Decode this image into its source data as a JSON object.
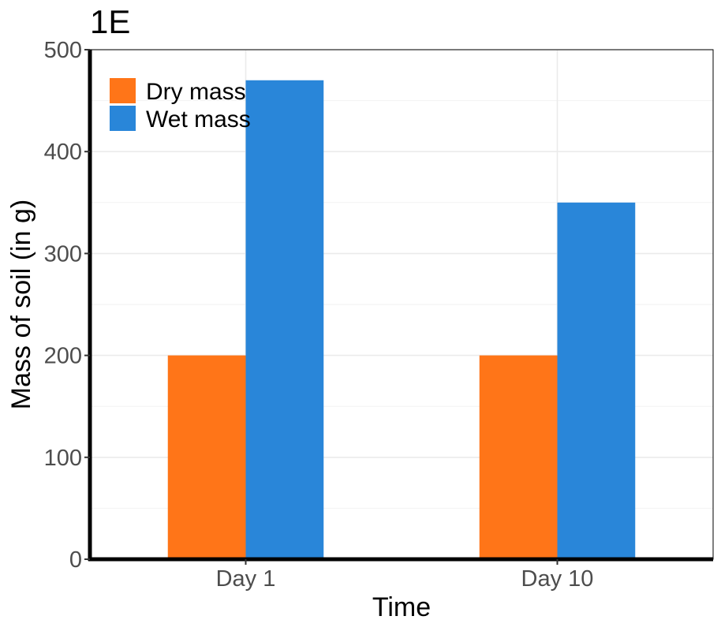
{
  "chart_data": {
    "type": "bar",
    "title": "1E",
    "xlabel": "Time",
    "ylabel": "Mass of soil (in g)",
    "categories": [
      "Day 1",
      "Day 10"
    ],
    "series": [
      {
        "name": "Dry mass",
        "values": [
          200,
          200
        ],
        "color": "#FF7518"
      },
      {
        "name": "Wet mass",
        "values": [
          470,
          350
        ],
        "color": "#2986D9"
      }
    ],
    "ylim": [
      0,
      500
    ],
    "yticks": [
      "0",
      "100",
      "200",
      "300",
      "400",
      "500"
    ],
    "grid": true,
    "legend_position": "top-left"
  }
}
